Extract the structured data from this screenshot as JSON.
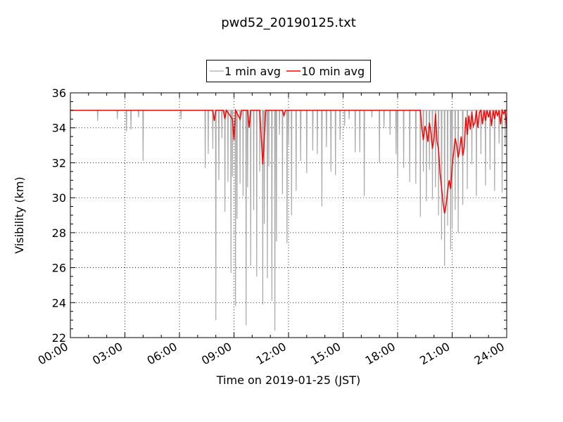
{
  "chart_data": {
    "type": "line",
    "title": "pwd52_20190125.txt",
    "xlabel": "Time on 2019-01-25 (JST)",
    "ylabel": "Visibility (km)",
    "xlim": [
      "00:00",
      "24:00"
    ],
    "ylim": [
      22,
      36
    ],
    "x_ticks": [
      "00:00",
      "03:00",
      "06:00",
      "09:00",
      "12:00",
      "15:00",
      "18:00",
      "21:00",
      "24:00"
    ],
    "y_ticks": [
      "22",
      "24",
      "26",
      "28",
      "30",
      "32",
      "34",
      "36"
    ],
    "grid": true,
    "legend": "top-center",
    "series": [
      {
        "name": "1 min avg",
        "color": "#a9a9a9",
        "baseline": 35,
        "dips": [
          [
            "01:30",
            34.4
          ],
          [
            "02:35",
            34.5
          ],
          [
            "03:05",
            33.8
          ],
          [
            "03:20",
            33.9
          ],
          [
            "03:45",
            34.6
          ],
          [
            "04:00",
            32.1
          ],
          [
            "06:05",
            34.5
          ],
          [
            "07:25",
            31.7
          ],
          [
            "07:35",
            32.5
          ],
          [
            "07:50",
            32.8
          ],
          [
            "08:00",
            23.0
          ],
          [
            "08:10",
            31.0
          ],
          [
            "08:20",
            33.4
          ],
          [
            "08:30",
            29.2
          ],
          [
            "08:40",
            30.9
          ],
          [
            "08:50",
            25.7
          ],
          [
            "08:55",
            31.2
          ],
          [
            "09:05",
            23.8
          ],
          [
            "09:10",
            28.8
          ],
          [
            "09:20",
            30.8
          ],
          [
            "09:30",
            30.1
          ],
          [
            "09:40",
            22.7
          ],
          [
            "09:45",
            30.6
          ],
          [
            "09:55",
            26.1
          ],
          [
            "10:05",
            29.3
          ],
          [
            "10:15",
            25.5
          ],
          [
            "10:25",
            31.5
          ],
          [
            "10:35",
            23.9
          ],
          [
            "10:40",
            28.5
          ],
          [
            "10:50",
            25.4
          ],
          [
            "10:55",
            31.8
          ],
          [
            "11:05",
            24.1
          ],
          [
            "11:15",
            22.4
          ],
          [
            "11:20",
            27.5
          ],
          [
            "11:30",
            33.6
          ],
          [
            "11:40",
            30.2
          ],
          [
            "11:55",
            27.4
          ],
          [
            "12:00",
            33.0
          ],
          [
            "12:10",
            29.0
          ],
          [
            "12:25",
            30.4
          ],
          [
            "12:40",
            32.1
          ],
          [
            "13:00",
            31.4
          ],
          [
            "13:20",
            32.7
          ],
          [
            "13:35",
            32.5
          ],
          [
            "13:50",
            29.5
          ],
          [
            "14:05",
            32.9
          ],
          [
            "14:20",
            31.5
          ],
          [
            "14:35",
            31.3
          ],
          [
            "14:50",
            33.3
          ],
          [
            "15:05",
            34.1
          ],
          [
            "15:20",
            34.5
          ],
          [
            "15:40",
            32.6
          ],
          [
            "15:55",
            32.6
          ],
          [
            "16:10",
            30.1
          ],
          [
            "16:35",
            34.6
          ],
          [
            "17:00",
            32.0
          ],
          [
            "17:15",
            34.0
          ],
          [
            "17:35",
            33.6
          ],
          [
            "17:55",
            32.5
          ],
          [
            "18:00",
            31.2
          ],
          [
            "18:20",
            31.7
          ],
          [
            "18:40",
            30.9
          ],
          [
            "19:00",
            30.8
          ],
          [
            "19:15",
            28.9
          ],
          [
            "19:25",
            31.5
          ],
          [
            "19:35",
            29.8
          ],
          [
            "19:45",
            31.6
          ],
          [
            "19:55",
            29.9
          ],
          [
            "20:05",
            30.6
          ],
          [
            "20:15",
            29.0
          ],
          [
            "20:25",
            27.6
          ],
          [
            "20:35",
            26.1
          ],
          [
            "20:45",
            28.4
          ],
          [
            "20:55",
            27.0
          ],
          [
            "21:00",
            28.2
          ],
          [
            "21:10",
            29.3
          ],
          [
            "21:20",
            28.0
          ],
          [
            "21:35",
            29.6
          ],
          [
            "21:50",
            30.5
          ],
          [
            "22:05",
            31.9
          ],
          [
            "22:20",
            30.1
          ],
          [
            "22:35",
            32.5
          ],
          [
            "22:50",
            30.7
          ],
          [
            "23:05",
            31.6
          ],
          [
            "23:20",
            30.4
          ],
          [
            "23:35",
            33.1
          ],
          [
            "23:45",
            30.3
          ],
          [
            "23:55",
            32.9
          ]
        ]
      },
      {
        "name": "10 min avg",
        "color": "#ff0000",
        "points": [
          [
            "00:00",
            35.0
          ],
          [
            "07:50",
            35.0
          ],
          [
            "07:55",
            34.4
          ],
          [
            "08:00",
            35.0
          ],
          [
            "08:25",
            35.0
          ],
          [
            "08:30",
            34.5
          ],
          [
            "08:35",
            35.0
          ],
          [
            "08:55",
            34.5
          ],
          [
            "09:00",
            33.3
          ],
          [
            "09:05",
            35.0
          ],
          [
            "09:20",
            34.5
          ],
          [
            "09:25",
            35.0
          ],
          [
            "09:45",
            35.0
          ],
          [
            "09:50",
            34.0
          ],
          [
            "09:55",
            35.0
          ],
          [
            "10:25",
            35.0
          ],
          [
            "10:35",
            31.9
          ],
          [
            "10:45",
            35.0
          ],
          [
            "11:40",
            35.0
          ],
          [
            "11:45",
            34.7
          ],
          [
            "11:50",
            35.0
          ],
          [
            "19:15",
            35.0
          ],
          [
            "19:20",
            34.0
          ],
          [
            "19:25",
            33.3
          ],
          [
            "19:30",
            34.1
          ],
          [
            "19:35",
            33.8
          ],
          [
            "19:40",
            33.2
          ],
          [
            "19:45",
            34.3
          ],
          [
            "19:50",
            33.7
          ],
          [
            "19:55",
            32.8
          ],
          [
            "20:00",
            33.4
          ],
          [
            "20:05",
            34.8
          ],
          [
            "20:10",
            33.2
          ],
          [
            "20:15",
            32.8
          ],
          [
            "20:20",
            31.4
          ],
          [
            "20:25",
            30.6
          ],
          [
            "20:30",
            29.7
          ],
          [
            "20:35",
            29.1
          ],
          [
            "20:40",
            29.6
          ],
          [
            "20:45",
            30.4
          ],
          [
            "20:50",
            31.0
          ],
          [
            "20:55",
            30.5
          ],
          [
            "21:00",
            31.8
          ],
          [
            "21:05",
            32.6
          ],
          [
            "21:10",
            33.4
          ],
          [
            "21:15",
            33.0
          ],
          [
            "21:20",
            32.3
          ],
          [
            "21:25",
            32.8
          ],
          [
            "21:30",
            33.5
          ],
          [
            "21:35",
            32.4
          ],
          [
            "21:40",
            32.9
          ],
          [
            "21:45",
            34.6
          ],
          [
            "21:50",
            33.6
          ],
          [
            "21:55",
            34.7
          ],
          [
            "22:00",
            33.9
          ],
          [
            "22:05",
            34.9
          ],
          [
            "22:10",
            34.1
          ],
          [
            "22:15",
            34.3
          ],
          [
            "22:20",
            35.0
          ],
          [
            "22:25",
            34.0
          ],
          [
            "22:30",
            34.9
          ],
          [
            "22:35",
            35.0
          ],
          [
            "22:40",
            34.2
          ],
          [
            "22:45",
            35.0
          ],
          [
            "22:50",
            34.4
          ],
          [
            "22:55",
            35.0
          ],
          [
            "23:00",
            34.6
          ],
          [
            "23:05",
            35.0
          ],
          [
            "23:10",
            34.1
          ],
          [
            "23:15",
            35.0
          ],
          [
            "23:20",
            34.5
          ],
          [
            "23:25",
            35.0
          ],
          [
            "23:30",
            34.7
          ],
          [
            "23:35",
            35.0
          ],
          [
            "23:40",
            34.2
          ],
          [
            "23:45",
            35.0
          ],
          [
            "23:50",
            34.8
          ],
          [
            "23:55",
            35.0
          ],
          [
            "24:00",
            34.0
          ]
        ]
      }
    ]
  }
}
